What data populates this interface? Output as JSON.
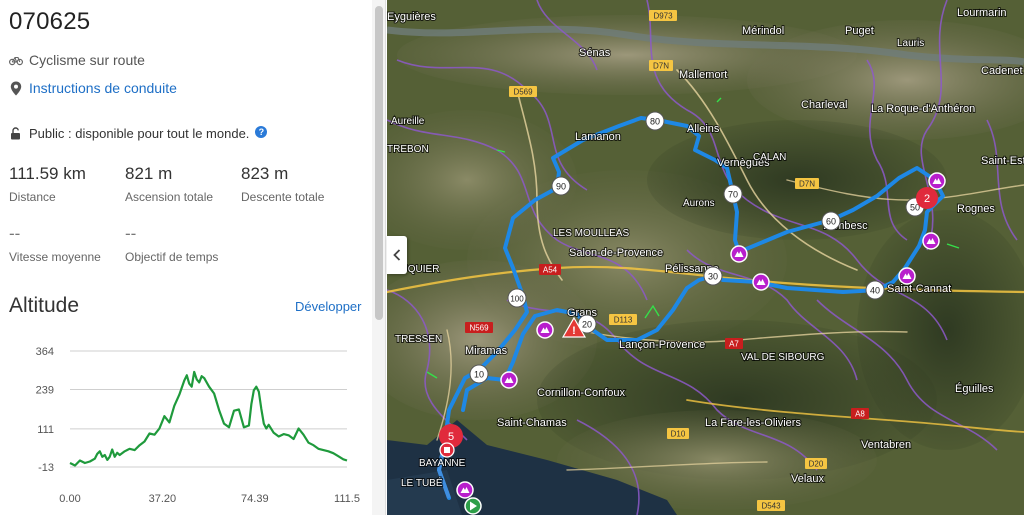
{
  "route": {
    "title": "070625",
    "activity": "Cyclisme sur route",
    "directions_link": "Instructions de conduite",
    "privacy": "Public : disponible pour tout le monde."
  },
  "stats": {
    "distance": {
      "value": "111.59 km",
      "label": "Distance"
    },
    "ascent": {
      "value": "821 m",
      "label": "Ascension totale"
    },
    "descent": {
      "value": "823 m",
      "label": "Descente totale"
    },
    "avg_speed": {
      "value": "--",
      "label": "Vitesse moyenne"
    },
    "time_goal": {
      "value": "--",
      "label": "Objectif de temps"
    }
  },
  "altitude": {
    "title": "Altitude",
    "expand_label": "Développer"
  },
  "chart_data": {
    "type": "area",
    "title": "",
    "xlabel": "",
    "ylabel": "",
    "xlim": [
      0,
      111.5
    ],
    "ylim": [
      -13,
      364
    ],
    "yticks": [
      "364",
      "239",
      "111",
      "-13"
    ],
    "xticks": [
      "0.00",
      "37.20",
      "74.39",
      "111.5"
    ],
    "grid": true,
    "color": "#1f9a3c",
    "series": [
      {
        "x": [
          0,
          2,
          4,
          6,
          8,
          10,
          11,
          12,
          13,
          14,
          15,
          16,
          17,
          18,
          19,
          20,
          22,
          24,
          26,
          28,
          30,
          32,
          34,
          36,
          38,
          40,
          42,
          44,
          46,
          47,
          48,
          49,
          50,
          51,
          52,
          53,
          54,
          56,
          58,
          60,
          62,
          64,
          66,
          68,
          70,
          72,
          73,
          74,
          75,
          76,
          77,
          78,
          79,
          80,
          82,
          84,
          86,
          88,
          90,
          92,
          94,
          96,
          98,
          100,
          102,
          104,
          106,
          108,
          110,
          111.5
        ],
        "y": [
          0,
          -8,
          8,
          0,
          5,
          14,
          30,
          38,
          20,
          26,
          10,
          20,
          44,
          20,
          33,
          26,
          38,
          46,
          42,
          58,
          70,
          96,
          92,
          112,
          152,
          132,
          186,
          222,
          268,
          285,
          258,
          248,
          296,
          272,
          262,
          282,
          276,
          248,
          226,
          172,
          128,
          116,
          170,
          174,
          116,
          122,
          192,
          236,
          248,
          232,
          176,
          128,
          112,
          124,
          98,
          86,
          94,
          90,
          78,
          112,
          92,
          66,
          58,
          46,
          42,
          38,
          32,
          22,
          12,
          8
        ]
      }
    ]
  },
  "map": {
    "places": [
      "Eyguières",
      "Mérindol",
      "Puget",
      "Lauris",
      "Lourmarin",
      "Sénas",
      "Mallemort",
      "Charleval",
      "La Roque-d'Anthéron",
      "Cadenet",
      "Aureille",
      "Lamanon",
      "Alleins",
      "Vernègues",
      "Saint-Est",
      "Rognes",
      "Aurons",
      "LES MOULLEAS",
      "Salon-de-Provence",
      "Pélissanne",
      "Lambesc",
      "Saint-Cannat",
      "Grans",
      "Lançon-Provence",
      "VAL DE SIBOURG",
      "Miramas",
      "Cornillon-Confoux",
      "Saint-Chamas",
      "La Fare-les-Oliviers",
      "Éguilles",
      "Ventabren",
      "Velaux",
      "BAYANNE",
      "LE TUBÉ",
      "TREBON",
      "LUQUIER",
      "TRESSEN",
      "CALAN"
    ],
    "roads": [
      "D973",
      "D7N",
      "D569",
      "A54",
      "D113",
      "N569",
      "D10",
      "A8",
      "D20",
      "D543",
      "A7",
      "D7N"
    ],
    "km_markers": [
      "10",
      "20",
      "30",
      "40",
      "50",
      "60",
      "70",
      "80",
      "90",
      "100"
    ],
    "waypoints": [
      "2",
      "5"
    ],
    "route_color": "#1e88e5",
    "climb_marker_color": "#b81ecc"
  }
}
